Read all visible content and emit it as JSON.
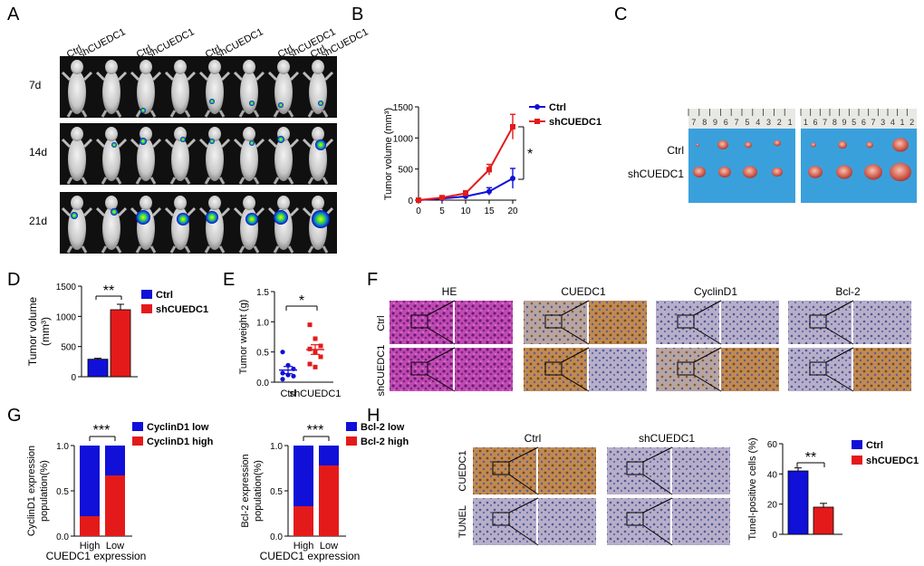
{
  "panels": {
    "a": "A",
    "b": "B",
    "c": "C",
    "d": "D",
    "e": "E",
    "f": "F",
    "g": "G",
    "h": "H"
  },
  "colors": {
    "blue": "#1010d8",
    "red": "#e41a1a",
    "sky": "#3aa0dc",
    "he": "#b0309a",
    "ihc_bg": "#b4a8c2",
    "brown": "#a8642a"
  },
  "panel_a": {
    "col_labels": [
      "Ctrl",
      "shCUEDC1",
      "Ctrl",
      "shCUEDC1",
      "Ctrl",
      "shCUEDC1",
      "Ctrl",
      "shCUEDC1",
      "Ctrl",
      "shCUEDC1"
    ],
    "rows": [
      "7d",
      "14d",
      "21d"
    ]
  },
  "panel_c": {
    "rows": [
      "Ctrl",
      "shCUEDC1"
    ],
    "ruler1": [
      "7",
      "8",
      "9",
      "6",
      "7",
      "5",
      "4",
      "3",
      "2",
      "1"
    ],
    "ruler2": [
      "1",
      "6",
      "7",
      "8",
      "9",
      "5",
      "6",
      "7",
      "3",
      "4",
      "1",
      "2"
    ]
  },
  "panel_f": {
    "stains": [
      "HE",
      "CUEDC1",
      "CyclinD1",
      "Bcl-2"
    ],
    "rows": [
      "Ctrl",
      "shCUEDC1"
    ]
  },
  "panel_h": {
    "cols": [
      "Ctrl",
      "shCUEDC1"
    ],
    "rows": [
      "CUEDC1",
      "TUNEL"
    ]
  },
  "chart_data": [
    {
      "id": "B",
      "type": "line",
      "x": [
        0,
        5,
        10,
        15,
        20
      ],
      "series": [
        {
          "name": "Ctrl",
          "color": "#1010d8",
          "values": [
            0,
            25,
            60,
            140,
            350
          ],
          "err": [
            0,
            10,
            30,
            60,
            160
          ]
        },
        {
          "name": "shCUEDC1",
          "color": "#e41a1a",
          "values": [
            0,
            40,
            110,
            490,
            1180
          ],
          "err": [
            0,
            15,
            40,
            85,
            200
          ]
        }
      ],
      "ylabel": "Tumor volume (mm³)",
      "ylim": [
        0,
        1500
      ],
      "yticks": [
        "0",
        "500",
        "1000",
        "1500"
      ],
      "xticks": [
        "0",
        "5",
        "10",
        "15",
        "20"
      ],
      "annotation": "*",
      "legend": "top-right"
    },
    {
      "id": "D",
      "type": "bar",
      "categories": [
        "Ctrl",
        "shCUEDC1"
      ],
      "series": [
        {
          "name": "Ctrl",
          "color": "#1010d8",
          "value": 290,
          "err": 15
        },
        {
          "name": "shCUEDC1",
          "color": "#e41a1a",
          "value": 1110,
          "err": 90
        }
      ],
      "ylabel": "Tumor volume (mm³)",
      "ylim": [
        0,
        1500
      ],
      "yticks": [
        "0",
        "500",
        "1000",
        "1500"
      ],
      "annotation": "**",
      "legend": "top-right"
    },
    {
      "id": "E",
      "type": "scatter",
      "categories": [
        "Ctrl",
        "shCUEDC1"
      ],
      "groups": [
        {
          "name": "Ctrl",
          "color": "#1010d8",
          "values": [
            0.5,
            0.28,
            0.22,
            0.15,
            0.12,
            0.1,
            0.05
          ],
          "mean": 0.2,
          "sem": 0.06
        },
        {
          "name": "shCUEDC1",
          "color": "#e41a1a",
          "values": [
            0.95,
            0.72,
            0.6,
            0.55,
            0.5,
            0.42,
            0.3,
            0.25
          ],
          "mean": 0.54,
          "sem": 0.08
        }
      ],
      "ylabel": "Tumor weight (g)",
      "ylim": [
        0,
        1.5
      ],
      "yticks": [
        "0.0",
        "0.5",
        "1.0",
        "1.5"
      ],
      "annotation": "*"
    },
    {
      "id": "G1",
      "type": "bar",
      "categories": [
        "High",
        "Low"
      ],
      "series": [
        {
          "name": "CyclinD1 low",
          "color": "#1010d8",
          "values": [
            0.78,
            0.33
          ]
        },
        {
          "name": "CyclinD1 high",
          "color": "#e41a1a",
          "values": [
            0.22,
            0.67
          ]
        }
      ],
      "stacked": true,
      "xlabel": "CUEDC1 expression",
      "ylabel": [
        "CyclinD1 expression",
        "population(%)"
      ],
      "ylim": [
        0,
        1
      ],
      "yticks": [
        "0.0",
        "0.5",
        "1.0"
      ],
      "annotation": "***",
      "legend": "top-right"
    },
    {
      "id": "G2",
      "type": "bar",
      "categories": [
        "High",
        "Low"
      ],
      "series": [
        {
          "name": "Bcl-2 low",
          "color": "#1010d8",
          "values": [
            0.67,
            0.22
          ]
        },
        {
          "name": "Bcl-2 high",
          "color": "#e41a1a",
          "values": [
            0.33,
            0.78
          ]
        }
      ],
      "stacked": true,
      "xlabel": "CUEDC1 expression",
      "ylabel": [
        "Bcl-2 expression",
        "population(%)"
      ],
      "ylim": [
        0,
        1
      ],
      "yticks": [
        "0.0",
        "0.5",
        "1.0"
      ],
      "annotation": "***",
      "legend": "top-right"
    },
    {
      "id": "H",
      "type": "bar",
      "categories": [
        "Ctrl",
        "shCUEDC1"
      ],
      "series": [
        {
          "name": "Ctrl",
          "color": "#1010d8",
          "value": 42,
          "err": 2
        },
        {
          "name": "shCUEDC1",
          "color": "#e41a1a",
          "value": 18,
          "err": 2.5
        }
      ],
      "ylabel": "Tunel-positive cells (%)",
      "ylim": [
        0,
        60
      ],
      "yticks": [
        "0",
        "20",
        "40",
        "60"
      ],
      "annotation": "**",
      "legend": "top-right"
    }
  ]
}
